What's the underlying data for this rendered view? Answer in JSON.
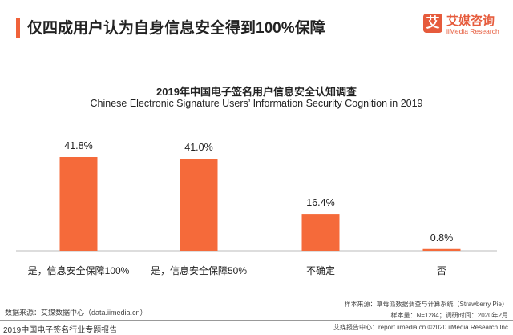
{
  "header": {
    "title": "仅四成用户认为自身信息安全得到100%保障",
    "logo_mark": "艾",
    "logo_cn": "艾媒咨询",
    "logo_en": "iiMedia Research"
  },
  "chart_data": {
    "type": "bar",
    "title": "2019年中国电子签名用户信息安全认知调查",
    "subtitle": "Chinese Electronic Signature Users’ Information Security Cognition in 2019",
    "categories": [
      "是，信息安全保障100%",
      "是，信息安全保障50%",
      "不确定",
      "否"
    ],
    "values": [
      41.8,
      41.0,
      16.4,
      0.8
    ],
    "labels": [
      "41.8%",
      "41.0%",
      "16.4%",
      "0.8%"
    ],
    "unit": "%",
    "ylim": [
      0,
      45
    ],
    "grid": false,
    "bar_color": "#f56a3a"
  },
  "footer": {
    "source": "数据来源：艾媒数据中心（data.iimedia.cn）",
    "sample_source": "样本来源：草莓派数据调查与计算系统（Strawberry Pie）",
    "sample_size": "样本量：N=1284；调研时间：2020年2月",
    "report_title": "2019中国电子签名行业专题报告",
    "copyright": "艾媒报告中心：report.iimedia.cn ©2020 iiMedia Research Inc"
  }
}
